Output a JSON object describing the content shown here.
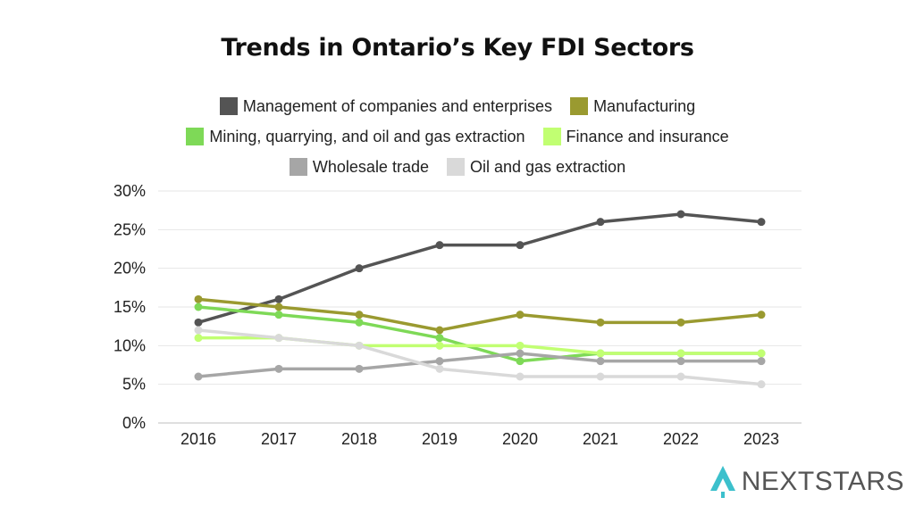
{
  "title": "Trends in Ontario’s Key FDI Sectors",
  "brand": {
    "name": "NEXTSTARS",
    "icon": "rocket-icon",
    "icon_color": "#3cc0cc"
  },
  "chart_data": {
    "type": "line",
    "title": "Trends in Ontario’s Key FDI Sectors",
    "xlabel": "",
    "ylabel": "",
    "x": [
      "2016",
      "2017",
      "2018",
      "2019",
      "2020",
      "2021",
      "2022",
      "2023"
    ],
    "ylim": [
      0,
      30
    ],
    "yticks": [
      "0%",
      "5%",
      "10%",
      "15%",
      "20%",
      "25%",
      "30%"
    ],
    "ytick_values": [
      0,
      5,
      10,
      15,
      20,
      25,
      30
    ],
    "grid": true,
    "legend_position": "top",
    "series": [
      {
        "name": "Management of companies and enterprises",
        "color": "#545454",
        "values": [
          13,
          16,
          20,
          23,
          23,
          26,
          27,
          26
        ]
      },
      {
        "name": "Manufacturing",
        "color": "#9a9a30",
        "values": [
          16,
          15,
          14,
          12,
          14,
          13,
          13,
          14
        ]
      },
      {
        "name": "Mining, quarrying, and oil and gas extraction",
        "color": "#7ed957",
        "values": [
          15,
          14,
          13,
          11,
          8,
          9,
          9,
          9
        ]
      },
      {
        "name": "Finance and insurance",
        "color": "#c1ff72",
        "values": [
          11,
          11,
          10,
          10,
          10,
          9,
          9,
          9
        ]
      },
      {
        "name": "Wholesale trade",
        "color": "#a6a6a6",
        "values": [
          6,
          7,
          7,
          8,
          9,
          8,
          8,
          8
        ]
      },
      {
        "name": "Oil and gas extraction",
        "color": "#d9d9d9",
        "values": [
          12,
          11,
          10,
          7,
          6,
          6,
          6,
          5
        ]
      }
    ],
    "legend_rows": [
      [
        0,
        1
      ],
      [
        2,
        3
      ],
      [
        4,
        5
      ]
    ]
  }
}
